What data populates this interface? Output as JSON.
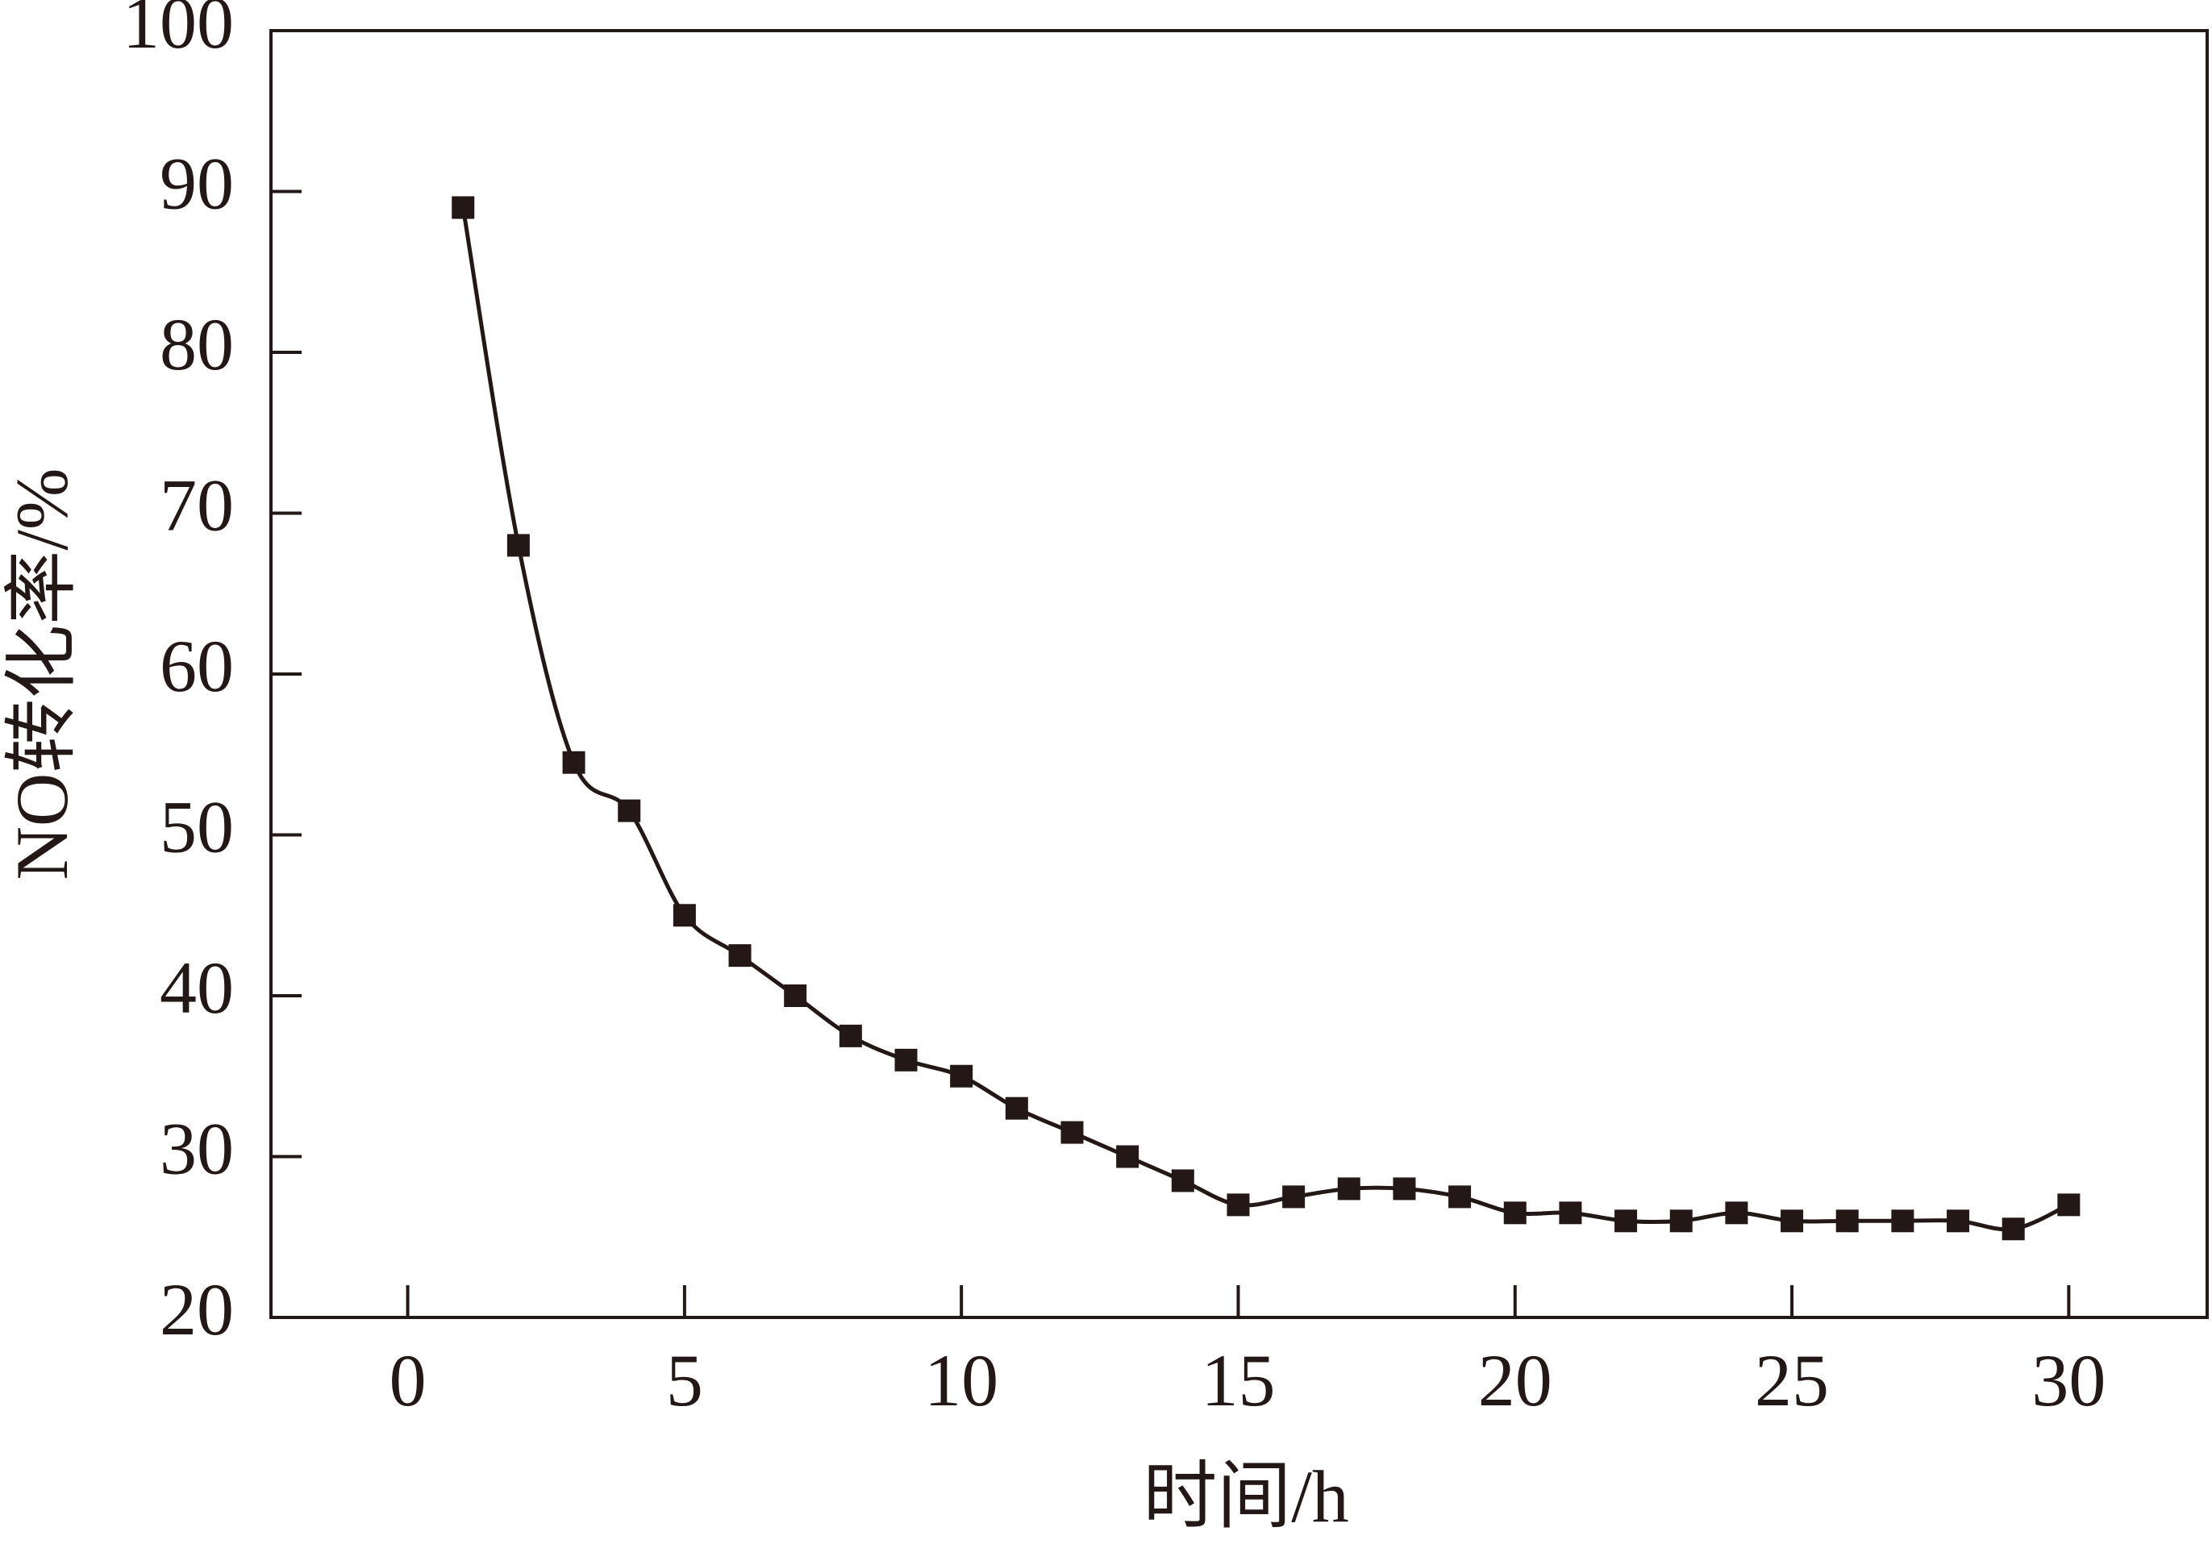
{
  "chart_data": {
    "type": "line",
    "x_label": "时间/h",
    "y_label": "NO转化率/%",
    "x": [
      1,
      2,
      3,
      4,
      5,
      6,
      7,
      8,
      9,
      10,
      11,
      12,
      13,
      14,
      15,
      16,
      17,
      18,
      19,
      20,
      21,
      22,
      23,
      24,
      25,
      26,
      27,
      28,
      29,
      30
    ],
    "series": [
      {
        "color": "#231815",
        "values": [
          89,
          68,
          54.5,
          51.5,
          45,
          42.5,
          40,
          37.5,
          36,
          35,
          33,
          31.5,
          30,
          28.5,
          27,
          27.5,
          28,
          28,
          27.5,
          26.5,
          26.5,
          26,
          26,
          26.5,
          26,
          26,
          26,
          26,
          25.5,
          27
        ]
      }
    ],
    "xlim": [
      -2.47,
      32.5
    ],
    "xticks": [
      0,
      5,
      10,
      15,
      20,
      25,
      30
    ],
    "ylim": [
      20,
      100
    ],
    "yticks": [
      20,
      30,
      40,
      50,
      60,
      70,
      80,
      90,
      100
    ],
    "marker": "square",
    "smooth": true
  }
}
